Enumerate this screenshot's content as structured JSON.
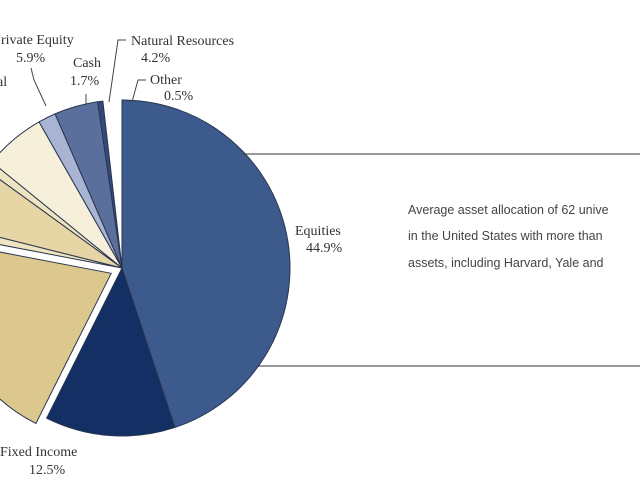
{
  "chart_data": {
    "type": "pie",
    "slices": [
      {
        "label": "Equities",
        "value": 44.9,
        "display": "44.9%",
        "color": "#3d5a8c"
      },
      {
        "label": "Fixed Income",
        "value": 12.5,
        "display": "12.5%",
        "color": "#132f63"
      },
      {
        "label": "",
        "value": null,
        "display": "",
        "color": "#dcc88f",
        "exploded": true
      },
      {
        "label": "",
        "value": null,
        "display": "",
        "color": "#efe4c0"
      },
      {
        "label": "al",
        "value": null,
        "display": "",
        "color": "#e6d6a6"
      },
      {
        "label": "",
        "value": null,
        "display": "",
        "color": "#efe4c0"
      },
      {
        "label": "rivate Equity",
        "value": 5.9,
        "display": "5.9%",
        "color": "#f6f0db"
      },
      {
        "label": "Cash",
        "value": 1.7,
        "display": "1.7%",
        "color": "#a9b4d2"
      },
      {
        "label": "Natural Resources",
        "value": 4.2,
        "display": "4.2%",
        "color": "#5a6f9c"
      },
      {
        "label": "Other",
        "value": 0.5,
        "display": "0.5%",
        "color": "#34497a"
      }
    ],
    "note_lines": [
      "Average asset allocation of 62 unive",
      "in the United States with more than",
      "assets, including Harvard, Yale and"
    ]
  }
}
